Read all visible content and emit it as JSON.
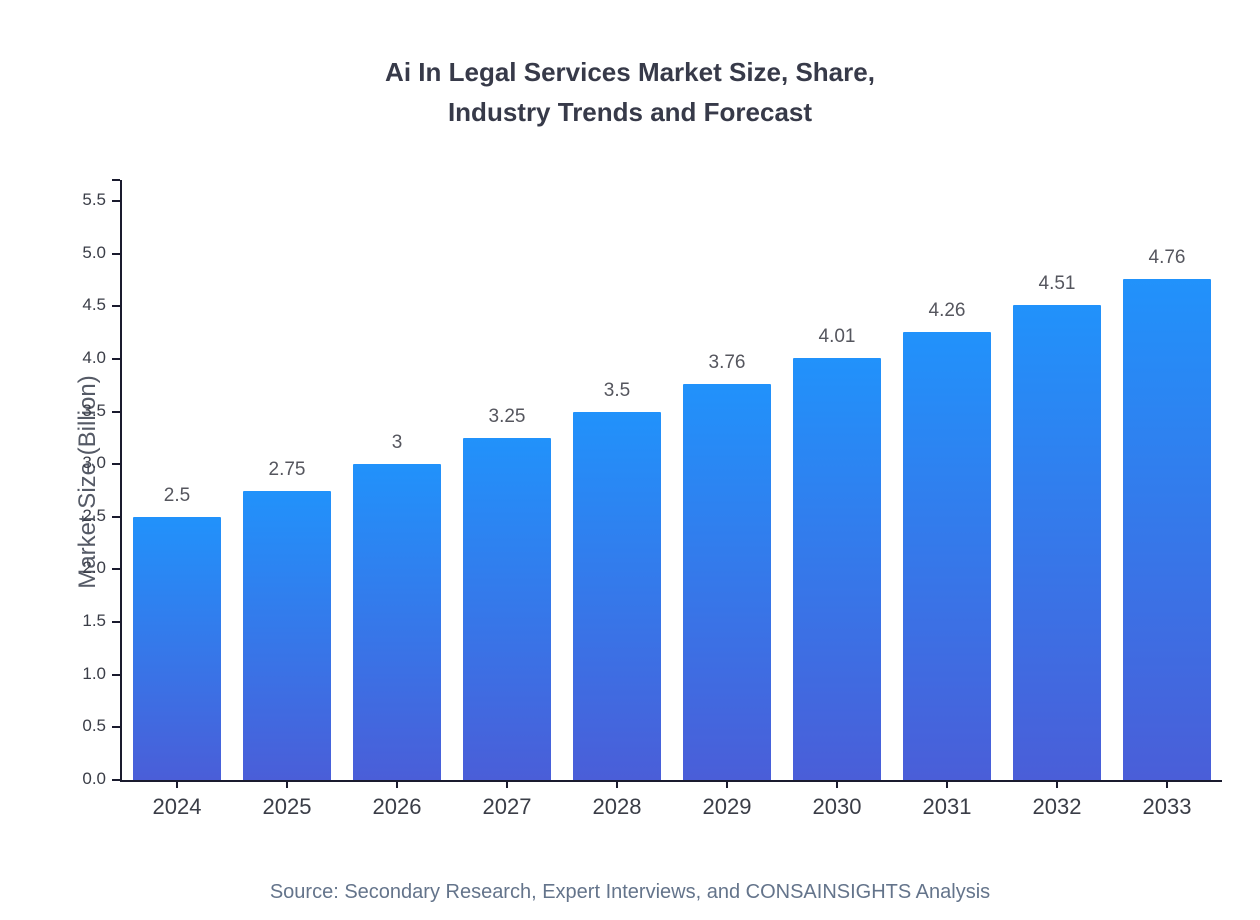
{
  "chart_data": {
    "type": "bar",
    "title": "Ai In Legal Services Market Size, Share, Industry Trends and Forecast",
    "title_line1": "Ai In Legal Services Market Size, Share,",
    "title_line2": "Industry Trends and Forecast",
    "categories": [
      "2024",
      "2025",
      "2026",
      "2027",
      "2028",
      "2029",
      "2030",
      "2031",
      "2032",
      "2033"
    ],
    "values": [
      2.5,
      2.75,
      3,
      3.25,
      3.5,
      3.76,
      4.01,
      4.26,
      4.51,
      4.76
    ],
    "value_labels": [
      "2.5",
      "2.75",
      "3",
      "3.25",
      "3.5",
      "3.76",
      "4.01",
      "4.26",
      "4.51",
      "4.76"
    ],
    "xlabel": "",
    "ylabel": "Market Size (Billion)",
    "ylim": [
      0,
      5.5
    ],
    "ytick_step": 0.5,
    "scale_max": 5.7,
    "grid": false,
    "legend": "none",
    "source": "Source: Secondary Research, Expert Interviews, and CONSAINSIGHTS Analysis",
    "colors": {
      "bar_gradient_top": "#2192fb",
      "bar_gradient_bottom": "#4a5ed8",
      "axis": "#1a1b2e",
      "title_text": "#373a49",
      "tick_text": "#3a3d47",
      "value_text": "#55565e",
      "source_text": "#64748b"
    }
  }
}
